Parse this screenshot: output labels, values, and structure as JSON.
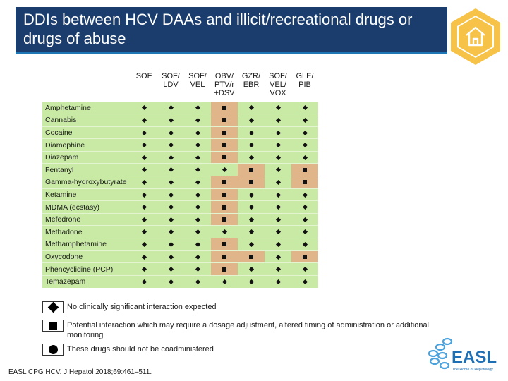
{
  "header": {
    "title": "DDIs between HCV DAAs and illicit/recreational drugs or drugs of abuse"
  },
  "table": {
    "columns": [
      "SOF",
      "SOF/ LDV",
      "SOF/ VEL",
      "OBV/ PTV/r +DSV",
      "GZR/ EBR",
      "SOF/ VEL/ VOX",
      "GLE/ PIB"
    ],
    "rows": [
      {
        "drug": "Amphetamine",
        "levels": [
          "none",
          "none",
          "none",
          "potential",
          "none",
          "none",
          "none"
        ]
      },
      {
        "drug": "Cannabis",
        "levels": [
          "none",
          "none",
          "none",
          "potential",
          "none",
          "none",
          "none"
        ]
      },
      {
        "drug": "Cocaine",
        "levels": [
          "none",
          "none",
          "none",
          "potential",
          "none",
          "none",
          "none"
        ]
      },
      {
        "drug": "Diamophine",
        "levels": [
          "none",
          "none",
          "none",
          "potential",
          "none",
          "none",
          "none"
        ]
      },
      {
        "drug": "Diazepam",
        "levels": [
          "none",
          "none",
          "none",
          "potential",
          "none",
          "none",
          "none"
        ]
      },
      {
        "drug": "Fentanyl",
        "levels": [
          "none",
          "none",
          "none",
          "none",
          "potential",
          "none",
          "potential"
        ]
      },
      {
        "drug": "Gamma-hydroxybutyrate",
        "levels": [
          "none",
          "none",
          "none",
          "potential",
          "potential",
          "none",
          "potential"
        ]
      },
      {
        "drug": "Ketamine",
        "levels": [
          "none",
          "none",
          "none",
          "potential",
          "none",
          "none",
          "none"
        ]
      },
      {
        "drug": "MDMA (ecstasy)",
        "levels": [
          "none",
          "none",
          "none",
          "potential",
          "none",
          "none",
          "none"
        ]
      },
      {
        "drug": "Mefedrone",
        "levels": [
          "none",
          "none",
          "none",
          "potential",
          "none",
          "none",
          "none"
        ]
      },
      {
        "drug": "Methadone",
        "levels": [
          "none",
          "none",
          "none",
          "none",
          "none",
          "none",
          "none"
        ]
      },
      {
        "drug": "Methamphetamine",
        "levels": [
          "none",
          "none",
          "none",
          "potential",
          "none",
          "none",
          "none"
        ]
      },
      {
        "drug": "Oxycodone",
        "levels": [
          "none",
          "none",
          "none",
          "potential",
          "potential",
          "none",
          "potential"
        ]
      },
      {
        "drug": "Phencyclidine (PCP)",
        "levels": [
          "none",
          "none",
          "none",
          "potential",
          "none",
          "none",
          "none"
        ]
      },
      {
        "drug": "Temazepam",
        "levels": [
          "none",
          "none",
          "none",
          "none",
          "none",
          "none",
          "none"
        ]
      }
    ]
  },
  "legend": {
    "none": "No clinically significant interaction expected",
    "potential": "Potential interaction which may require a dosage adjustment, altered timing of administration or additional monitoring",
    "contraindicated": "These drugs should not be coadministered"
  },
  "citation": "EASL CPG HCV. J Hepatol 2018;69:461–511.",
  "logo": {
    "wordmark": "EASL",
    "tagline": "The Home of Hepatology"
  },
  "colors": {
    "header_bg": "#1a3d6e",
    "home_icon": "#f6c247",
    "none_cell": "#c9eaa5",
    "potential_cell": "#e0b589",
    "logo_blue": "#1f6fb5",
    "logo_light": "#4aa3df"
  }
}
